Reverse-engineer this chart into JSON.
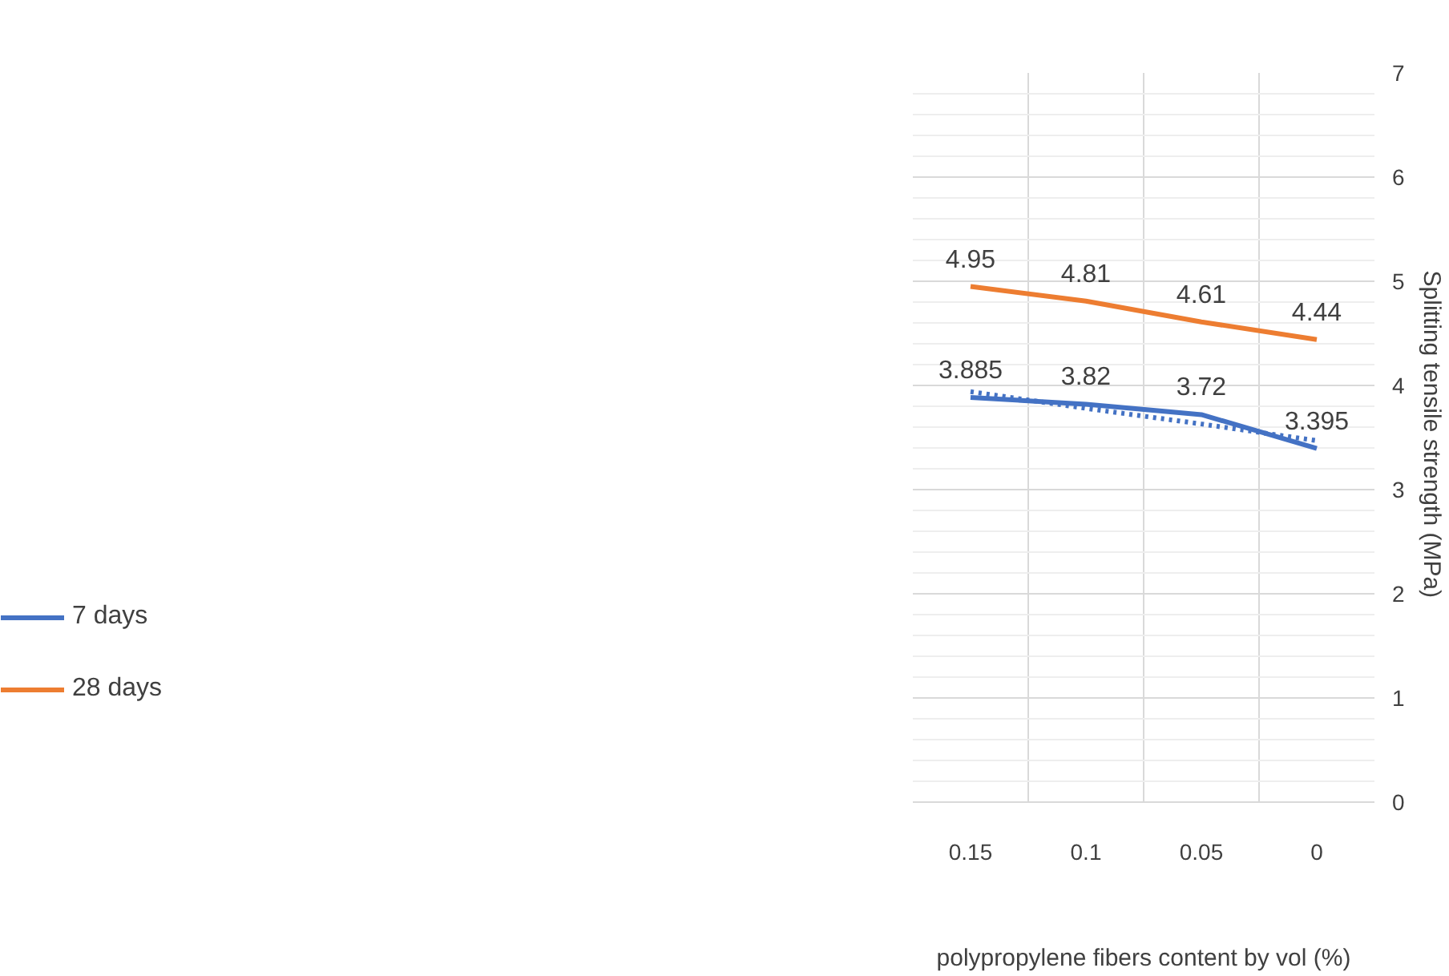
{
  "chart_data": {
    "type": "line",
    "categories": [
      "0.15",
      "0.1",
      "0.05",
      "0"
    ],
    "xlabel": "polypropylene fibers content by vol (%)",
    "ylabel": "Splitting tensile  strength (MPa)",
    "series": [
      {
        "name": "7 days",
        "color": "#4472c4",
        "values": [
          3.885,
          3.82,
          3.72,
          3.395
        ],
        "value_labels": [
          "3.885",
          "3.82",
          "3.72",
          "3.395"
        ]
      },
      {
        "name": "28 days",
        "color": "#ed7d31",
        "values": [
          4.95,
          4.81,
          4.61,
          4.44
        ],
        "value_labels": [
          "4.95",
          "4.81",
          "4.61",
          "4.44"
        ]
      },
      {
        "type": "line",
        "color": "#4472c4",
        "line_style": "dotted",
        "values": [
          3.94,
          3.78,
          3.63,
          3.47
        ]
      }
    ],
    "ylim": [
      0,
      7
    ],
    "yticks": [
      0,
      1,
      2,
      3,
      4,
      5,
      6,
      7
    ],
    "grid": true,
    "legend": "left",
    "line_style": "solid",
    "marker": "none"
  }
}
